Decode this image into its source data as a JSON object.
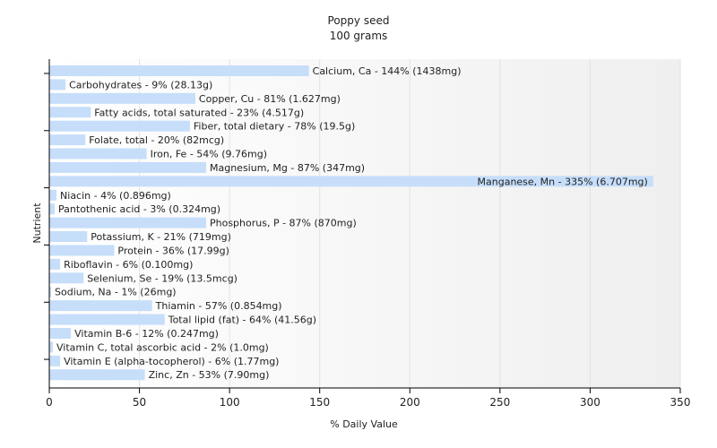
{
  "chart_data": {
    "type": "bar",
    "orientation": "horizontal",
    "title": "Poppy seed",
    "subtitle": "100 grams",
    "xlabel": "% Daily Value",
    "ylabel": "Nutrient",
    "xlim": [
      0,
      350
    ],
    "xticks": [
      0,
      50,
      100,
      150,
      200,
      250,
      300,
      350
    ],
    "grid": true,
    "bar_color": "#c6defa",
    "bars": [
      {
        "value": 144,
        "label": "Calcium, Ca - 144% (1438mg)"
      },
      {
        "value": 9,
        "label": "Carbohydrates - 9% (28.13g)"
      },
      {
        "value": 81,
        "label": "Copper, Cu - 81% (1.627mg)"
      },
      {
        "value": 23,
        "label": "Fatty acids, total saturated - 23% (4.517g)"
      },
      {
        "value": 78,
        "label": "Fiber, total dietary - 78% (19.5g)"
      },
      {
        "value": 20,
        "label": "Folate, total - 20% (82mcg)"
      },
      {
        "value": 54,
        "label": "Iron, Fe - 54% (9.76mg)"
      },
      {
        "value": 87,
        "label": "Magnesium, Mg - 87% (347mg)"
      },
      {
        "value": 335,
        "label": "Manganese, Mn - 335% (6.707mg)"
      },
      {
        "value": 4,
        "label": "Niacin - 4% (0.896mg)"
      },
      {
        "value": 3,
        "label": "Pantothenic acid - 3% (0.324mg)"
      },
      {
        "value": 87,
        "label": "Phosphorus, P - 87% (870mg)"
      },
      {
        "value": 21,
        "label": "Potassium, K - 21% (719mg)"
      },
      {
        "value": 36,
        "label": "Protein - 36% (17.99g)"
      },
      {
        "value": 6,
        "label": "Riboflavin - 6% (0.100mg)"
      },
      {
        "value": 19,
        "label": "Selenium, Se - 19% (13.5mcg)"
      },
      {
        "value": 1,
        "label": "Sodium, Na - 1% (26mg)"
      },
      {
        "value": 57,
        "label": "Thiamin - 57% (0.854mg)"
      },
      {
        "value": 64,
        "label": "Total lipid (fat) - 64% (41.56g)"
      },
      {
        "value": 12,
        "label": "Vitamin B-6 - 12% (0.247mg)"
      },
      {
        "value": 2,
        "label": "Vitamin C, total ascorbic acid - 2% (1.0mg)"
      },
      {
        "value": 6,
        "label": "Vitamin E (alpha-tocopherol) - 6% (1.77mg)"
      },
      {
        "value": 53,
        "label": "Zinc, Zn - 53% (7.90mg)"
      }
    ]
  }
}
